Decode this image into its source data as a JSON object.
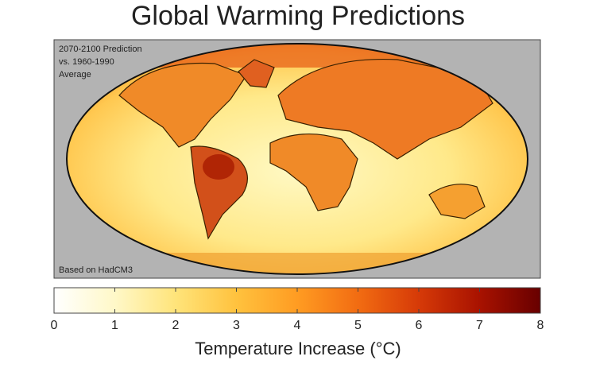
{
  "title": "Global Warming Predictions",
  "annotation_top": [
    "2070-2100 Prediction",
    "vs. 1960-1990",
    "Average"
  ],
  "annotation_bottom": "Based on HadCM3",
  "colorbar": {
    "label": "Temperature Increase (°C)",
    "lim": [
      0,
      8
    ],
    "ticks": [
      0,
      1,
      2,
      3,
      4,
      5,
      6,
      7,
      8
    ],
    "colors": [
      "#ffffff",
      "#fff8c8",
      "#ffe47a",
      "#ffc23e",
      "#ff9c22",
      "#f26c12",
      "#d63a08",
      "#a81200",
      "#680000"
    ]
  }
}
